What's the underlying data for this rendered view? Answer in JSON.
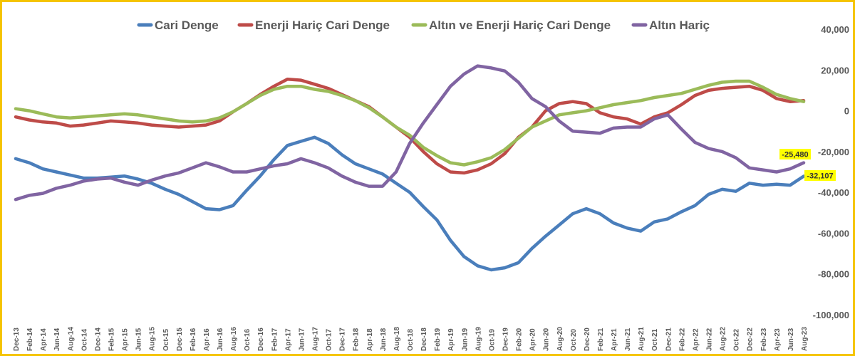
{
  "chart_data": {
    "type": "line",
    "title": "",
    "xlabel": "",
    "ylabel": "",
    "ylim": [
      -100000,
      40000
    ],
    "yticks": [
      "40,000",
      "20,000",
      "0",
      "-20,000",
      "-40,000",
      "-60,000",
      "-80,000",
      "-100,000"
    ],
    "ytick_values": [
      40000,
      20000,
      0,
      -20000,
      -40000,
      -60000,
      -80000,
      -100000
    ],
    "grid": false,
    "legend_position": "top",
    "x_labels": [
      "Dec-13",
      "Feb-14",
      "Apr-14",
      "Jun-14",
      "Aug-14",
      "Oct-14",
      "Dec-14",
      "Feb-15",
      "Apr-15",
      "Jun-15",
      "Aug-15",
      "Oct-15",
      "Dec-15",
      "Feb-16",
      "Apr-16",
      "Jun-16",
      "Aug-16",
      "Oct-16",
      "Dec-16",
      "Feb-17",
      "Apr-17",
      "Jun-17",
      "Aug-17",
      "Oct-17",
      "Dec-17",
      "Feb-18",
      "Apr-18",
      "Jun-18",
      "Aug-18",
      "Oct-18",
      "Dec-18",
      "Feb-19",
      "Apr-19",
      "Jun-19",
      "Aug-19",
      "Oct-19",
      "Dec-19",
      "Feb-20",
      "Apr-20",
      "Jun-20",
      "Aug-20",
      "Oct-20",
      "Dec-20",
      "Feb-21",
      "Apr-21",
      "Jun-21",
      "Aug-21",
      "Oct-21",
      "Dec-21",
      "Feb-22",
      "Apr-22",
      "Jun-22",
      "Aug-22",
      "Oct-22",
      "Dec-22",
      "Feb-23",
      "Apr-23",
      "Jun-23",
      "Aug-23"
    ],
    "series": [
      {
        "name": "Cari Denge",
        "color": "#4a7ebb",
        "values": [
          -23500,
          -25500,
          -28500,
          -30000,
          -31500,
          -33000,
          -33000,
          -32500,
          -32000,
          -33500,
          -35500,
          -38500,
          -41000,
          -44500,
          -48000,
          -48500,
          -46500,
          -39000,
          -32000,
          -24000,
          -17000,
          -15000,
          -13000,
          -16000,
          -21500,
          -26000,
          -28500,
          -31000,
          -35500,
          -40000,
          -47000,
          -53500,
          -63500,
          -71500,
          -76000,
          -78000,
          -77000,
          -74500,
          -67500,
          -61500,
          -56000,
          -50500,
          -48000,
          -50500,
          -55000,
          -57500,
          -59000,
          -54500,
          -53000,
          -49500,
          -46500,
          -41000,
          -38500,
          -39500,
          -35500,
          -36500,
          -36000,
          -36500,
          -32107
        ]
      },
      {
        "name": "Enerji Hariç Cari Denge",
        "color": "#be4b48",
        "values": [
          -3000,
          -4500,
          -5500,
          -6000,
          -7500,
          -7000,
          -6000,
          -5000,
          -5500,
          -6000,
          -7000,
          -7500,
          -8000,
          -7500,
          -7000,
          -5000,
          -500,
          3500,
          8000,
          12000,
          15500,
          15000,
          13000,
          11000,
          8000,
          5000,
          2000,
          -3000,
          -8000,
          -13000,
          -20000,
          -26000,
          -30000,
          -30500,
          -29000,
          -26000,
          -21000,
          -13000,
          -8000,
          0,
          3500,
          4500,
          3500,
          -1000,
          -3000,
          -4000,
          -6500,
          -3000,
          -1000,
          3000,
          7500,
          10000,
          11000,
          11500,
          12000,
          10000,
          6000,
          4500,
          5000
        ]
      },
      {
        "name": "Altın ve Enerji Hariç Cari Denge",
        "color": "#9bbb59",
        "values": [
          1000,
          0,
          -1500,
          -3000,
          -3500,
          -3000,
          -2500,
          -2000,
          -1500,
          -2000,
          -3000,
          -4000,
          -5000,
          -5500,
          -5000,
          -3500,
          -500,
          3500,
          7500,
          10500,
          12000,
          12000,
          10500,
          9500,
          7500,
          5000,
          1500,
          -3000,
          -8000,
          -12000,
          -18000,
          -22000,
          -25500,
          -26500,
          -25000,
          -23000,
          -19000,
          -13500,
          -8000,
          -5000,
          -2000,
          -1000,
          0,
          1500,
          3000,
          4000,
          5000,
          6500,
          7500,
          8500,
          10500,
          12500,
          14000,
          14500,
          14500,
          11500,
          8000,
          6000,
          4500
        ]
      },
      {
        "name": "Altın Hariç",
        "color": "#8064a2",
        "values": [
          -43500,
          -41500,
          -40500,
          -38000,
          -36500,
          -34500,
          -33500,
          -33000,
          -35000,
          -36500,
          -34000,
          -32000,
          -30500,
          -28000,
          -25500,
          -27500,
          -30000,
          -30000,
          -28500,
          -27000,
          -26000,
          -23500,
          -25500,
          -28000,
          -32000,
          -35000,
          -37000,
          -37000,
          -30000,
          -16000,
          -6000,
          3000,
          12000,
          18000,
          22000,
          21000,
          19500,
          14000,
          6000,
          2000,
          -5000,
          -10000,
          -10500,
          -11000,
          -8500,
          -8000,
          -8000,
          -4000,
          -2000,
          -9000,
          -15500,
          -18500,
          -20000,
          -23000,
          -28000,
          -29000,
          -30000,
          -28500,
          -25480
        ]
      }
    ],
    "data_labels": [
      {
        "series": "Altın Hariç",
        "text": "-25,480",
        "value": -25480,
        "bg": "#ffff00"
      },
      {
        "series": "Cari Denge",
        "text": "-32,107",
        "value": -32107,
        "bg": "#ffff00"
      }
    ]
  }
}
